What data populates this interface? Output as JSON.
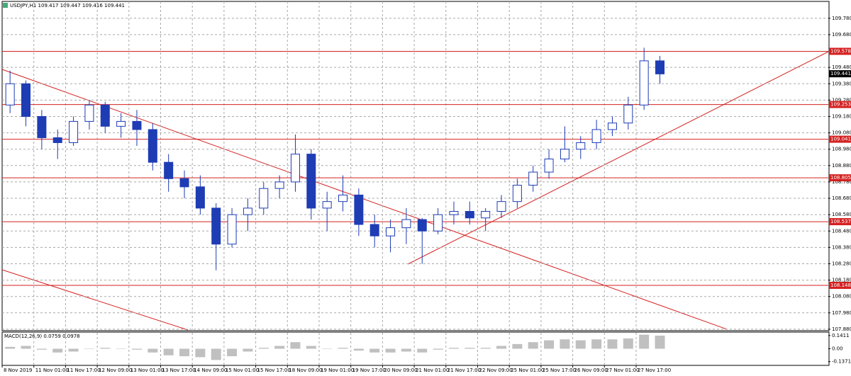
{
  "chart_data": [
    {
      "type": "candlestick",
      "title": "USDJPY,H1 109.417 109.447 109.416 109.441",
      "categories": [
        "8 Nov 2019",
        null,
        "11 Nov 01:00",
        null,
        "11 Nov 17:00",
        null,
        "12 Nov 09:00",
        null,
        "13 Nov 01:00",
        null,
        "13 Nov 17:00",
        null,
        "14 Nov 09:00",
        null,
        "15 Nov 01:00",
        null,
        "15 Nov 17:00",
        null,
        "18 Nov 09:00",
        null,
        "19 Nov 01:00",
        null,
        "19 Nov 17:00",
        null,
        "20 Nov 09:00",
        null,
        "21 Nov 01:00",
        null,
        "21 Nov 17:00",
        null,
        "22 Nov 09:00",
        null,
        "25 Nov 01:00",
        null,
        "25 Nov 17:00",
        null,
        "26 Nov 09:00",
        null,
        "27 Nov 01:00",
        null,
        "27 Nov 17:00",
        null
      ],
      "open": [
        109.25,
        109.38,
        109.18,
        109.05,
        109.02,
        109.15,
        109.25,
        109.12,
        109.15,
        109.1,
        108.9,
        108.8,
        108.75,
        108.62,
        108.4,
        108.58,
        108.62,
        108.74,
        108.78,
        108.95,
        108.62,
        108.66,
        108.7,
        108.52,
        108.45,
        108.5,
        108.55,
        108.48,
        108.58,
        108.6,
        108.56,
        108.6,
        108.66,
        108.76,
        108.84,
        108.92,
        108.98,
        109.02,
        109.1,
        109.14,
        109.25,
        109.52
      ],
      "high": [
        109.46,
        109.4,
        109.22,
        109.1,
        109.18,
        109.28,
        109.27,
        109.2,
        109.22,
        109.14,
        108.95,
        108.85,
        108.82,
        108.65,
        108.62,
        108.68,
        108.78,
        108.82,
        109.07,
        108.98,
        108.72,
        108.82,
        108.74,
        108.58,
        108.55,
        108.62,
        108.56,
        108.62,
        108.66,
        108.66,
        108.62,
        108.7,
        108.8,
        108.88,
        108.98,
        109.12,
        109.06,
        109.16,
        109.18,
        109.3,
        109.6,
        109.55
      ],
      "low": [
        109.2,
        109.12,
        108.98,
        108.92,
        109.0,
        109.1,
        109.08,
        109.05,
        109.0,
        108.85,
        108.72,
        108.68,
        108.58,
        108.24,
        108.38,
        108.48,
        108.58,
        108.68,
        108.72,
        108.55,
        108.48,
        108.6,
        108.45,
        108.38,
        108.35,
        108.4,
        108.28,
        108.46,
        108.52,
        108.52,
        108.48,
        108.56,
        108.62,
        108.72,
        108.8,
        108.9,
        108.92,
        108.98,
        109.06,
        109.1,
        109.22,
        109.38
      ],
      "close": [
        109.38,
        109.18,
        109.05,
        109.02,
        109.15,
        109.25,
        109.12,
        109.15,
        109.1,
        108.9,
        108.8,
        108.75,
        108.62,
        108.4,
        108.58,
        108.62,
        108.74,
        108.78,
        108.95,
        108.62,
        108.66,
        108.7,
        108.52,
        108.45,
        108.5,
        108.55,
        108.48,
        108.58,
        108.6,
        108.56,
        108.6,
        108.66,
        108.76,
        108.84,
        108.92,
        108.98,
        109.02,
        109.1,
        109.14,
        109.25,
        109.52,
        109.44
      ],
      "color": "#1e3cb4",
      "ylim": [
        107.871,
        109.883
      ],
      "yticks": [
        {
          "value": 109.78,
          "label": "109.780"
        },
        {
          "value": 109.68,
          "label": "109.680"
        },
        {
          "value": 109.48,
          "label": "109.480"
        },
        {
          "value": 109.38,
          "label": "109.380"
        },
        {
          "value": 109.28,
          "label": "109.280"
        },
        {
          "value": 109.18,
          "label": "109.180"
        },
        {
          "value": 109.08,
          "label": "109.080"
        },
        {
          "value": 108.98,
          "label": "108.980"
        },
        {
          "value": 108.88,
          "label": "108.880"
        },
        {
          "value": 108.78,
          "label": "108.780"
        },
        {
          "value": 108.68,
          "label": "108.680"
        },
        {
          "value": 108.58,
          "label": "108.580"
        },
        {
          "value": 108.48,
          "label": "108.480"
        },
        {
          "value": 108.38,
          "label": "108.380"
        },
        {
          "value": 108.28,
          "label": "108.280"
        },
        {
          "value": 108.18,
          "label": "108.180"
        },
        {
          "value": 108.08,
          "label": "108.080"
        },
        {
          "value": 107.98,
          "label": "107.980"
        },
        {
          "value": 107.88,
          "label": "107.880"
        }
      ],
      "levels": [
        109.578,
        109.253,
        109.041,
        108.805,
        108.537,
        108.148
      ],
      "level_color": "#d42020",
      "current_price": 109.441,
      "grid": true
    },
    {
      "type": "bar",
      "title": "MACD(12,26,9) 0.0759 0.0978",
      "values": [
        0.02,
        0.03,
        -0.01,
        -0.04,
        -0.03,
        0.0,
        0.01,
        0.0,
        -0.01,
        -0.04,
        -0.07,
        -0.08,
        -0.09,
        -0.12,
        -0.08,
        -0.03,
        0.01,
        0.03,
        0.07,
        0.03,
        0.0,
        0.01,
        -0.02,
        -0.04,
        -0.04,
        -0.03,
        -0.04,
        -0.01,
        0.01,
        0.01,
        0.01,
        0.03,
        0.05,
        0.07,
        0.09,
        0.1,
        0.09,
        0.1,
        0.1,
        0.11,
        0.15,
        0.14
      ],
      "color": "#c0c0c0",
      "ylim": [
        -0.17,
        0.17
      ],
      "yticks": [
        0.1411,
        {
          "value": 0,
          "label": "0.00"
        },
        -0.1371
      ]
    }
  ]
}
